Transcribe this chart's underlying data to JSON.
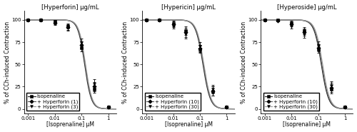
{
  "panels": [
    {
      "title": "[Hyperforin] μg/mL",
      "xlabel": "[Isoprenaline] μM",
      "ylabel": "% of CCh-induced Contraction",
      "legend_labels": [
        "Isopenaline",
        "+ Hyperforin (1)",
        "+ Hyperforin (3)"
      ],
      "legend_markers": [
        "s",
        "D",
        "v"
      ],
      "x_data": [
        0.001,
        0.003,
        0.01,
        0.03,
        0.1,
        0.3,
        1.0
      ],
      "curves": [
        {
          "y": [
            100,
            100,
            98,
            93,
            69,
            22,
            2
          ],
          "yerr": [
            1,
            1,
            2,
            3,
            4,
            4,
            1
          ]
        },
        {
          "y": [
            100,
            100,
            97,
            92,
            72,
            25,
            2
          ],
          "yerr": [
            1,
            1,
            2,
            3,
            4,
            5,
            1
          ]
        },
        {
          "y": [
            100,
            100,
            96,
            91,
            74,
            28,
            2
          ],
          "yerr": [
            1,
            1,
            2,
            3,
            5,
            5,
            1
          ]
        }
      ],
      "ec50": [
        0.13,
        0.135,
        0.14
      ],
      "hill": [
        3.5,
        3.5,
        3.5
      ]
    },
    {
      "title": "[Hypericin] μg/mL",
      "xlabel": "[Isoprenaline] μM",
      "ylabel": "% of CCh-induced Contraction",
      "legend_labels": [
        "Isopenaline",
        "+ Hyperforin (10)",
        "+ Hyperforin (30)"
      ],
      "legend_markers": [
        "s",
        "D",
        "v"
      ],
      "x_data": [
        0.001,
        0.003,
        0.01,
        0.03,
        0.1,
        0.3,
        1.0
      ],
      "curves": [
        {
          "y": [
            100,
            100,
            96,
            88,
            67,
            20,
            2
          ],
          "yerr": [
            1,
            1,
            3,
            5,
            4,
            5,
            1
          ]
        },
        {
          "y": [
            100,
            100,
            95,
            86,
            68,
            20,
            2
          ],
          "yerr": [
            1,
            1,
            3,
            5,
            4,
            5,
            1
          ]
        },
        {
          "y": [
            100,
            100,
            93,
            84,
            70,
            22,
            2
          ],
          "yerr": [
            1,
            1,
            3,
            5,
            5,
            5,
            1
          ]
        }
      ],
      "ec50": [
        0.13,
        0.135,
        0.14
      ],
      "hill": [
        3.2,
        3.2,
        3.2
      ]
    },
    {
      "title": "[Hyperoside] μg/mL",
      "xlabel": "[Isoprenaline] μM",
      "ylabel": "% of CCh-induced Contraction",
      "legend_labels": [
        "Isopenaline",
        "+ Hyperforin (10)",
        "+ Hyperforin (30)"
      ],
      "legend_markers": [
        "s",
        "D",
        "v"
      ],
      "x_data": [
        0.001,
        0.003,
        0.01,
        0.03,
        0.1,
        0.3,
        1.0
      ],
      "curves": [
        {
          "y": [
            100,
            100,
            97,
            88,
            67,
            22,
            2
          ],
          "yerr": [
            1,
            1,
            2,
            4,
            4,
            5,
            1
          ]
        },
        {
          "y": [
            100,
            99,
            95,
            86,
            69,
            24,
            2
          ],
          "yerr": [
            1,
            1,
            2,
            4,
            4,
            5,
            1
          ]
        },
        {
          "y": [
            100,
            99,
            93,
            84,
            71,
            26,
            2
          ],
          "yerr": [
            1,
            1,
            3,
            4,
            5,
            5,
            1
          ]
        }
      ],
      "ec50": [
        0.13,
        0.135,
        0.145
      ],
      "hill": [
        3.2,
        3.2,
        3.2
      ]
    }
  ],
  "line_colors": [
    "#222222",
    "#555555",
    "#999999"
  ],
  "ylim": [
    -5,
    110
  ],
  "yticks": [
    0,
    25,
    50,
    75,
    100
  ],
  "xlim": [
    0.0007,
    2.0
  ],
  "background_color": "white",
  "fontsize_title": 6,
  "fontsize_label": 5.5,
  "fontsize_tick": 5,
  "fontsize_legend": 5
}
